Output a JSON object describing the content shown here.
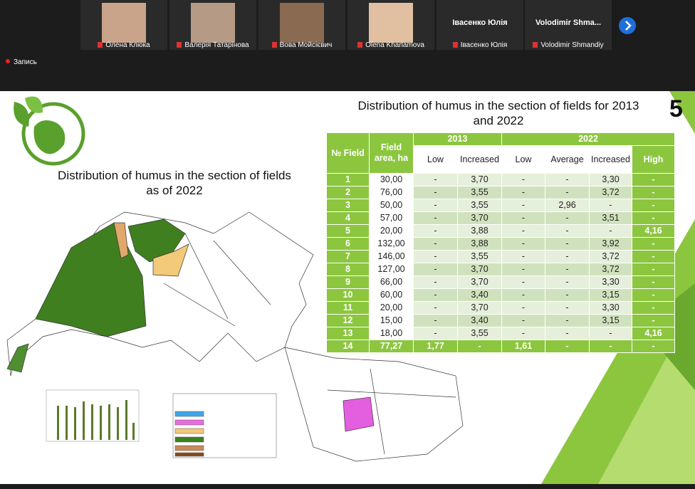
{
  "participants": [
    {
      "name": "Олена Клюка"
    },
    {
      "name": "Валерія Татарінова"
    },
    {
      "name": "Вова Мойсієвич"
    },
    {
      "name": "Olena Kharlamova"
    },
    {
      "name": "Івасенко Юлія",
      "tile_name": "Івасенко Юлія"
    },
    {
      "name": "Volodimir Shmandiy",
      "tile_name": "Volodimir  Shma..."
    }
  ],
  "recording": "Запись",
  "slide": {
    "number": "5",
    "title": "Distribution of humus in the section of fields for 2013 and 2022",
    "map_title": "Distribution of humus in the section of fields as of 2022",
    "table": {
      "header": {
        "field": "№ Field",
        "area": "Field area, ha",
        "year_2013": "2013",
        "year_2022": "2022",
        "sub": [
          "Low",
          "Increased",
          "Low",
          "Average",
          "Increased",
          "High"
        ]
      },
      "rows": [
        [
          "1",
          "30,00",
          "-",
          "3,70",
          "-",
          "-",
          "3,30",
          "-"
        ],
        [
          "2",
          "76,00",
          "-",
          "3,55",
          "-",
          "-",
          "3,72",
          "-"
        ],
        [
          "3",
          "50,00",
          "-",
          "3,55",
          "-",
          "2,96",
          "-",
          "-"
        ],
        [
          "4",
          "57,00",
          "-",
          "3,70",
          "-",
          "-",
          "3,51",
          "-"
        ],
        [
          "5",
          "20,00",
          "-",
          "3,88",
          "-",
          "-",
          "-",
          "4,16"
        ],
        [
          "6",
          "132,00",
          "-",
          "3,88",
          "-",
          "-",
          "3,92",
          "-"
        ],
        [
          "7",
          "146,00",
          "-",
          "3,55",
          "-",
          "-",
          "3,72",
          "-"
        ],
        [
          "8",
          "127,00",
          "-",
          "3,70",
          "-",
          "-",
          "3,72",
          "-"
        ],
        [
          "9",
          "66,00",
          "-",
          "3,70",
          "-",
          "-",
          "3,30",
          "-"
        ],
        [
          "10",
          "60,00",
          "-",
          "3,40",
          "-",
          "-",
          "3,15",
          "-"
        ],
        [
          "11",
          "20,00",
          "-",
          "3,70",
          "-",
          "-",
          "3,30",
          "-"
        ],
        [
          "12",
          "15,00",
          "-",
          "3,40",
          "-",
          "-",
          "3,15",
          "-"
        ],
        [
          "13",
          "18,00",
          "-",
          "3,55",
          "-",
          "-",
          "-",
          "4,16"
        ],
        [
          "14",
          "77,27",
          "1,77",
          "-",
          "1,61",
          "-",
          "-",
          "-"
        ]
      ]
    }
  }
}
